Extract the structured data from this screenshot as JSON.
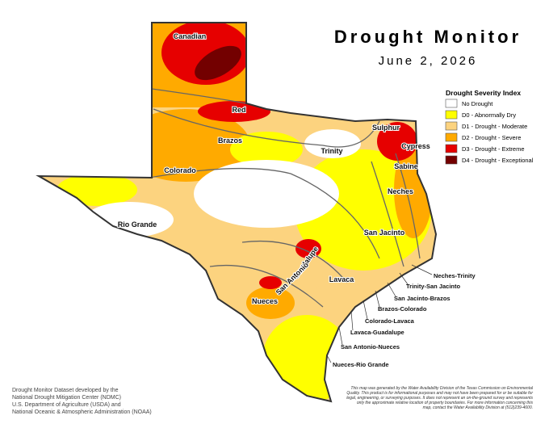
{
  "header": {
    "title": "Drought Monitor",
    "date": "June 2, 2026"
  },
  "legend": {
    "title": "Drought Severity Index",
    "items": [
      {
        "label": "No Drought",
        "color": "#ffffff"
      },
      {
        "label": "D0 - Abnormally Dry",
        "color": "#ffff00"
      },
      {
        "label": "D1 - Drought - Moderate",
        "color": "#fcd37f"
      },
      {
        "label": "D2 - Drought - Severe",
        "color": "#ffaa00"
      },
      {
        "label": "D3 - Drought - Extreme",
        "color": "#e60000"
      },
      {
        "label": "D4 - Drought - Exceptional",
        "color": "#730000"
      }
    ]
  },
  "basins": [
    "Canadian",
    "Red",
    "Brazos",
    "Colorado",
    "Rio Grande",
    "Trinity",
    "Sulphur",
    "Cypress",
    "Sabine",
    "Neches",
    "San Jacinto",
    "Guadalupe",
    "San Antonio",
    "Lavaca",
    "Nueces"
  ],
  "coastal_basins": [
    "Neches-Trinity",
    "Trinity-San Jacinto",
    "San Jacinto-Brazos",
    "Brazos-Colorado",
    "Colorado-Lavaca",
    "Lavaca-Guadalupe",
    "San Antonio-Nueces",
    "Nueces-Rio Grande"
  ],
  "credits": [
    "Drought Monitor Dataset developed by the",
    "National Drought Mitigation Center (NDMC)",
    "U.S. Department of Agriculture (USDA) and",
    "National Oceanic & Atmospheric Administration (NOAA)"
  ],
  "disclaimer": [
    "This map was generated by the Water Availability Division of the Texas Commission on Environmental",
    "Quality. This product is for informational purposes and may not have been prepared for or be suitable for",
    "legal, engineering, or surveying purposes. It does not represent an on-the-ground survey and represents",
    "only the approximate relative location of property boundaries. For more information concerning this",
    "map, contact the Water Availability Division at (512)239-4600."
  ]
}
